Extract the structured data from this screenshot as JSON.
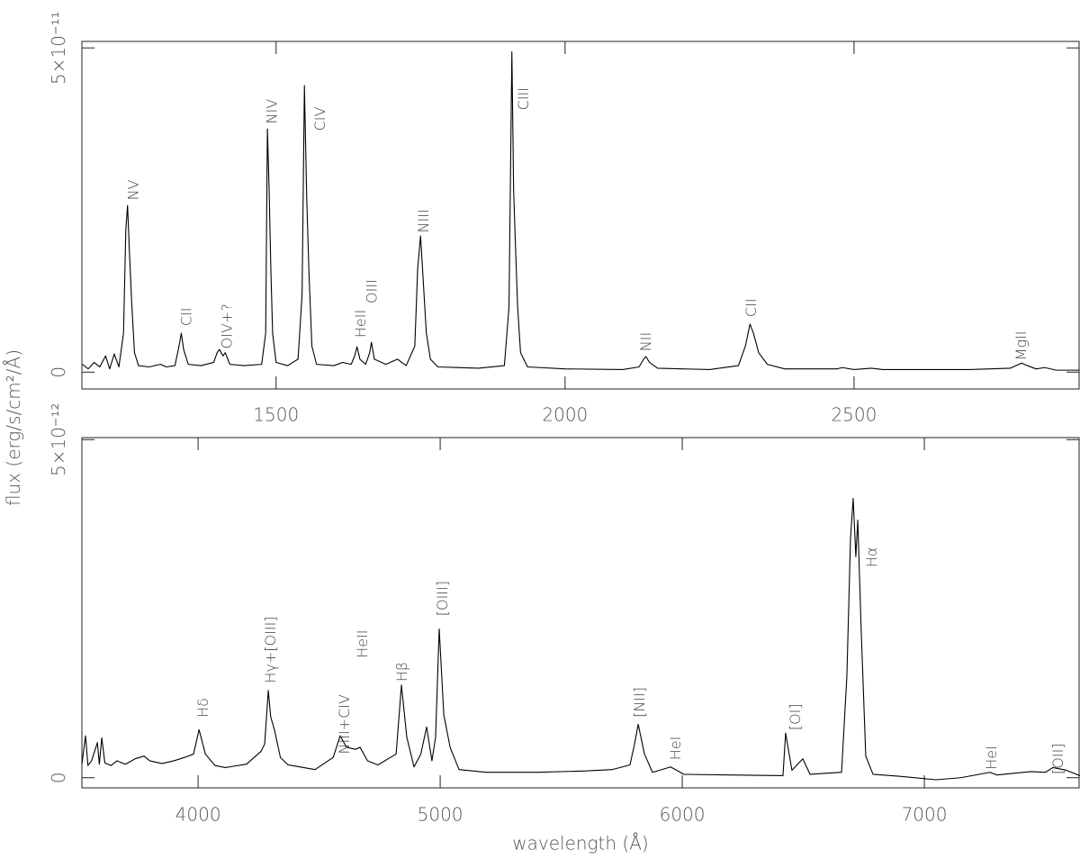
{
  "chart_data": [
    {
      "type": "line",
      "ylabel": "flux (erg/s/cm²/Å)",
      "color": "#000000",
      "xlim": [
        1164,
        2891
      ],
      "xticks": [
        1500,
        2000,
        2500
      ],
      "ylim": [
        -2.6e-12,
        5.1e-11
      ],
      "yticks": [
        0,
        {
          "value": 5e-11,
          "label": "5×10⁻¹¹"
        }
      ],
      "x": [
        1165,
        1175,
        1185,
        1195,
        1205,
        1212,
        1220,
        1228,
        1236,
        1240,
        1243,
        1246,
        1250,
        1255,
        1262,
        1280,
        1300,
        1310,
        1325,
        1332,
        1336,
        1340,
        1348,
        1370,
        1392,
        1398,
        1402,
        1408,
        1412,
        1420,
        1445,
        1475,
        1482,
        1485,
        1488,
        1491,
        1494,
        1500,
        1520,
        1538,
        1545,
        1549,
        1553,
        1557,
        1562,
        1570,
        1600,
        1615,
        1630,
        1636,
        1640,
        1645,
        1655,
        1662,
        1665,
        1670,
        1690,
        1710,
        1725,
        1740,
        1745,
        1750,
        1754,
        1760,
        1767,
        1780,
        1850,
        1895,
        1903,
        1908,
        1911,
        1914,
        1918,
        1923,
        1935,
        2000,
        2100,
        2128,
        2136,
        2140,
        2146,
        2160,
        2250,
        2300,
        2312,
        2320,
        2326,
        2335,
        2350,
        2380,
        2470,
        2480,
        2500,
        2530,
        2550,
        2700,
        2770,
        2790,
        2800,
        2815,
        2830,
        2850,
        2890
      ],
      "values": [
        1.2e-12,
        5e-13,
        1.5e-12,
        8e-13,
        2.5e-12,
        5e-13,
        2.8e-12,
        8e-13,
        6e-12,
        2.2e-11,
        2.57e-11,
        1.9e-11,
        1.1e-11,
        3e-12,
        1e-12,
        8e-13,
        1.2e-12,
        8e-13,
        1e-12,
        4e-12,
        6e-12,
        3.5e-12,
        1.2e-12,
        1e-12,
        1.5e-12,
        3e-12,
        3.5e-12,
        2.5e-12,
        3e-12,
        1.2e-12,
        1e-12,
        1.2e-12,
        6e-12,
        3.75e-11,
        2.8e-11,
        1.57e-11,
        6e-12,
        1.5e-12,
        1e-12,
        2e-12,
        1.2e-11,
        4.42e-11,
        2.68e-11,
        1.5e-11,
        4e-12,
        1.2e-12,
        1e-12,
        1.5e-12,
        1.2e-12,
        2.5e-12,
        3.9e-12,
        2e-12,
        1.2e-12,
        3e-12,
        4.6e-12,
        2e-12,
        1.2e-12,
        2e-12,
        1e-12,
        4e-12,
        1.6e-11,
        2.1e-11,
        1.5e-11,
        6e-12,
        2e-12,
        8e-13,
        6e-13,
        1e-12,
        1e-11,
        4.94e-11,
        2.8e-11,
        2e-11,
        1e-11,
        3e-12,
        8e-13,
        5e-13,
        4e-13,
        8e-13,
        2e-12,
        2.4e-12,
        1.5e-12,
        6e-13,
        4e-13,
        1e-12,
        4e-12,
        7.4e-12,
        6e-12,
        3e-12,
        1.2e-12,
        5e-13,
        5e-13,
        7e-13,
        4e-13,
        6e-13,
        4e-13,
        4e-13,
        6e-13,
        1.4e-12,
        1e-12,
        5e-13,
        7e-13,
        3e-13,
        3e-13
      ],
      "annotations": [
        {
          "text": "NV",
          "x": 1252,
          "y": 2.65e-11
        },
        {
          "text": "CII",
          "x": 1344,
          "y": 7.1e-12
        },
        {
          "text": "OIV+?",
          "x": 1414,
          "y": 3.6e-12
        },
        {
          "text": "NIV",
          "x": 1492,
          "y": 3.83e-11
        },
        {
          "text": "CIV",
          "x": 1575,
          "y": 3.72e-11
        },
        {
          "text": "HeII",
          "x": 1645,
          "y": 5.3e-12
        },
        {
          "text": "OIII",
          "x": 1665,
          "y": 1.06e-11
        },
        {
          "text": "NIII",
          "x": 1754,
          "y": 2.15e-11
        },
        {
          "text": "CIII",
          "x": 1927,
          "y": 4.04e-11
        },
        {
          "text": "NII",
          "x": 2139,
          "y": 3.2e-12
        },
        {
          "text": "CII",
          "x": 2321,
          "y": 8.5e-12
        },
        {
          "text": "MgII",
          "x": 2788,
          "y": 1.8e-12
        }
      ]
    },
    {
      "type": "line",
      "xlabel": "wavelength (Å)",
      "color": "#000000",
      "xlim": [
        3520,
        7643
      ],
      "xticks": [
        4000,
        5000,
        6000,
        7000
      ],
      "ylim": [
        -1.5e-13,
        5.03e-12
      ],
      "yticks": [
        0,
        {
          "value": 5e-12,
          "label": "5×10⁻¹²"
        }
      ],
      "x": [
        3520,
        3535,
        3545,
        3560,
        3584,
        3592,
        3602,
        3615,
        3640,
        3665,
        3700,
        3740,
        3777,
        3800,
        3851,
        3900,
        3944,
        3981,
        4004,
        4030,
        4070,
        4112,
        4200,
        4260,
        4275,
        4290,
        4300,
        4316,
        4340,
        4372,
        4483,
        4558,
        4587,
        4613,
        4650,
        4669,
        4700,
        4743,
        4818,
        4840,
        4862,
        4892,
        4920,
        4944,
        4966,
        4981,
        4996,
        5015,
        5041,
        5078,
        5190,
        5400,
        5600,
        5710,
        5784,
        5803,
        5818,
        5844,
        5877,
        5952,
        6007,
        6200,
        6416,
        6427,
        6453,
        6498,
        6528,
        6658,
        6680,
        6695,
        6706,
        6717,
        6725,
        6739,
        6758,
        6788,
        6900,
        7048,
        7150,
        7271,
        7300,
        7438,
        7500,
        7531,
        7587,
        7643
      ],
      "values": [
        2e-13,
        6.2e-13,
        1.8e-13,
        2.5e-13,
        5.2e-13,
        2e-13,
        5.9e-13,
        2.2e-13,
        1.8e-13,
        2.5e-13,
        2e-13,
        2.8e-13,
        3.2e-13,
        2.5e-13,
        2.1e-13,
        2.5e-13,
        3e-13,
        3.5e-13,
        7.1e-13,
        3.5e-13,
        1.8e-13,
        1.5e-13,
        2e-13,
        3.9e-13,
        5e-13,
        1.29e-12,
        9e-13,
        7e-13,
        3e-13,
        1.9e-13,
        1.2e-13,
        3e-13,
        6.2e-13,
        4.5e-13,
        4.2e-13,
        4.5e-13,
        2.5e-13,
        1.9e-13,
        3.5e-13,
        1.37e-12,
        6e-13,
        1.6e-13,
        3.5e-13,
        7.5e-13,
        2.5e-13,
        6e-13,
        2.2e-12,
        9.3e-13,
        4.5e-13,
        1.2e-13,
        8e-14,
        8e-14,
        1e-13,
        1.2e-13,
        1.9e-13,
        5e-13,
        7.9e-13,
        3.5e-13,
        8e-14,
        1.6e-13,
        5e-14,
        4e-14,
        3e-14,
        6.6e-13,
        1.1e-13,
        2.8e-13,
        5e-14,
        8e-14,
        1.5e-12,
        3.54e-12,
        4.13e-12,
        3.27e-12,
        3.81e-12,
        2.2e-12,
        3.2e-13,
        5e-14,
        2e-14,
        -3e-14,
        0.0,
        8e-14,
        4e-14,
        9e-14,
        8e-14,
        1.5e-13,
        1.1e-13,
        3e-14
      ],
      "annotations": [
        {
          "text": "Hδ",
          "x": 4019,
          "y": 8.9e-13
        },
        {
          "text": "Hγ+[OIII]",
          "x": 4297,
          "y": 1.4e-12
        },
        {
          "text": "NIII+CIV",
          "x": 4602,
          "y": 3.5e-13
        },
        {
          "text": "HeII",
          "x": 4676,
          "y": 1.77e-12
        },
        {
          "text": "Hβ",
          "x": 4840,
          "y": 1.42e-12
        },
        {
          "text": "[OIII]",
          "x": 5007,
          "y": 2.39e-12
        },
        {
          "text": "[NII]",
          "x": 5821,
          "y": 8.9e-13
        },
        {
          "text": "HeI",
          "x": 5970,
          "y": 2.6e-13
        },
        {
          "text": "[OI]",
          "x": 6464,
          "y": 7e-13
        },
        {
          "text": "Hα",
          "x": 6780,
          "y": 3.11e-12
        },
        {
          "text": "HeI",
          "x": 7275,
          "y": 1.2e-13
        },
        {
          "text": "[OII]",
          "x": 7550,
          "y": 5e-14
        }
      ]
    }
  ]
}
